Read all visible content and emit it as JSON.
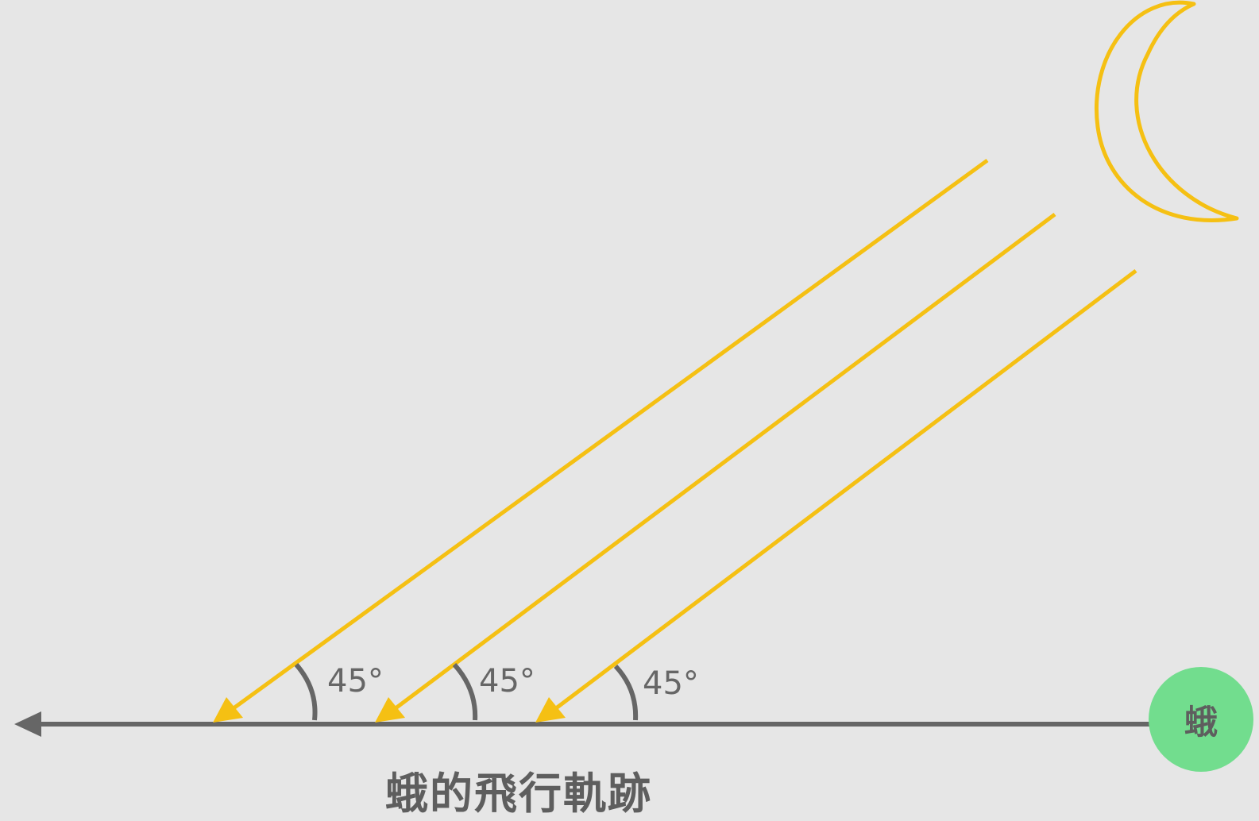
{
  "diagram": {
    "title": "蛾的飛行軌跡",
    "moth_label": "蛾",
    "angle_labels": [
      "45°",
      "45°",
      "45°"
    ],
    "colors": {
      "background": "#e6e6e6",
      "light_ray": "#f5c013",
      "moon": "#f5c013",
      "path": "#666666",
      "moth": "#72dd8e",
      "text": "#5e5e5e"
    },
    "icons": {
      "moon": "crescent-moon-icon",
      "moth": "moth-node"
    }
  }
}
